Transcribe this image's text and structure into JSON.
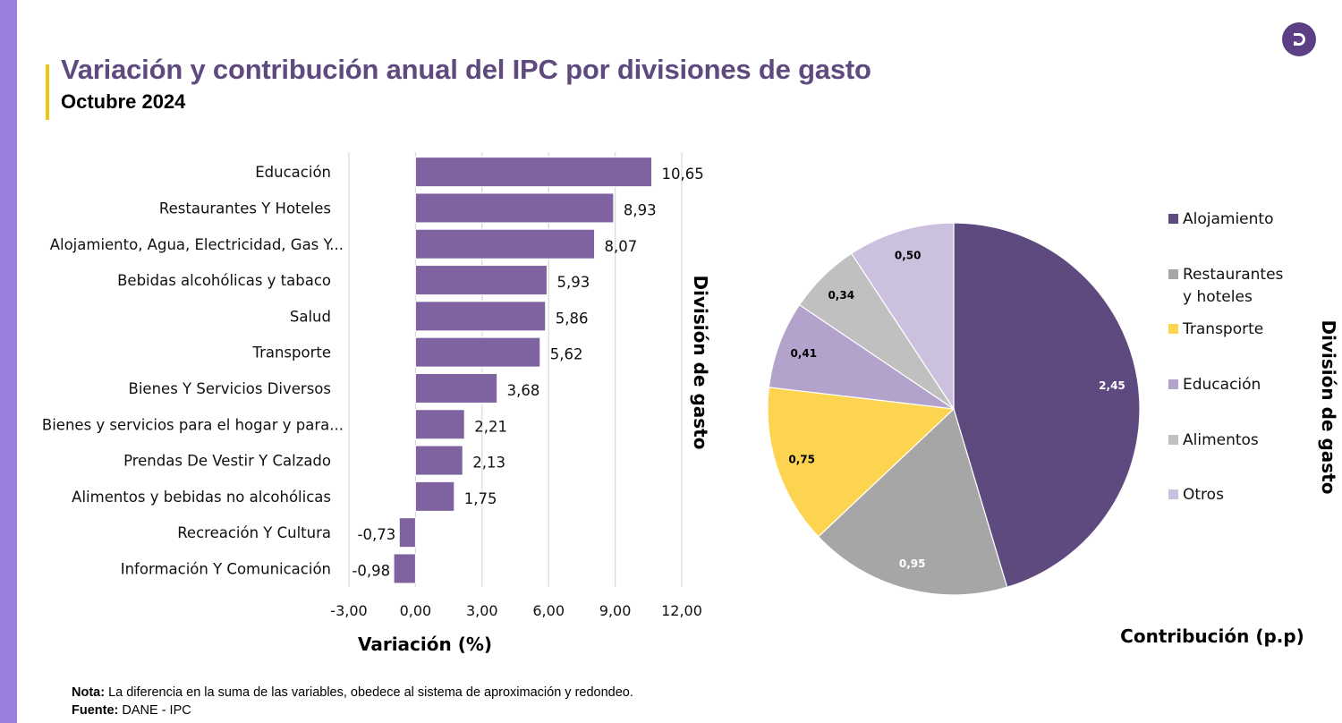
{
  "header": {
    "title": "Variación y contribución anual del IPC por divisiones de gasto",
    "subtitle": "Octubre 2024",
    "logo_letter": "D"
  },
  "colors": {
    "side_band": "#9b7ddc",
    "accent": "#f2c318",
    "title": "#5e4a7e",
    "bar": "#7f63a0"
  },
  "footer": {
    "note_label": "Nota:",
    "note_text": " La diferencia en la suma de las variables, obedece al sistema de aproximación y redondeo.",
    "source_label": "Fuente:",
    "source_text": " DANE - IPC"
  },
  "chart_data": [
    {
      "type": "bar",
      "orientation": "horizontal",
      "categories": [
        "Educación",
        "Restaurantes Y Hoteles",
        "Alojamiento, Agua, Electricidad, Gas Y...",
        "Bebidas alcohólicas y tabaco",
        "Salud",
        "Transporte",
        "Bienes Y Servicios Diversos",
        "Bienes y servicios para el hogar y para...",
        "Prendas De Vestir Y Calzado",
        "Alimentos y bebidas no alcohólicas",
        "Recreación Y Cultura",
        "Información Y Comunicación"
      ],
      "values": [
        10.65,
        8.93,
        8.07,
        5.93,
        5.86,
        5.62,
        3.68,
        2.21,
        2.13,
        1.75,
        -0.73,
        -0.98
      ],
      "value_labels": [
        "10,65",
        "8,93",
        "8,07",
        "5,93",
        "5,86",
        "5,62",
        "3,68",
        "2,21",
        "2,13",
        "1,75",
        "-0,73",
        "-0,98"
      ],
      "xlabel": "Variación (%)",
      "ylabel": "División de gasto",
      "xlim": [
        -3,
        12
      ],
      "xticks": [
        -3,
        0,
        3,
        6,
        9,
        12
      ],
      "xtick_labels": [
        "-3,00",
        "0,00",
        "3,00",
        "6,00",
        "9,00",
        "12,00"
      ],
      "grid": true,
      "color": "#7f63a0"
    },
    {
      "type": "pie",
      "title": "",
      "xlabel": "Contribución (p.p)",
      "legend_title": "División de gasto",
      "legend_position": "right",
      "slices": [
        {
          "label": "Alojamiento",
          "legend": "Alojamiento",
          "value": 2.45,
          "value_label": "2,45",
          "color": "#5e4a7e",
          "label_color": "#ffffff"
        },
        {
          "label": "Restaurantes y hoteles",
          "legend": "Restaurantes y hoteles",
          "value": 0.95,
          "value_label": "0,95",
          "color": "#a6a6a6",
          "label_color": "#ffffff"
        },
        {
          "label": "Transporte",
          "legend": "Transporte",
          "value": 0.75,
          "value_label": "0,75",
          "color": "#fdd44f",
          "label_color": "#000000"
        },
        {
          "label": "Educación",
          "legend": "Educación",
          "value": 0.41,
          "value_label": "0,41",
          "color": "#b3a2cb",
          "label_color": "#000000"
        },
        {
          "label": "Alimentos",
          "legend": "Alimentos",
          "value": 0.34,
          "value_label": "0,34",
          "color": "#c0c0c0",
          "label_color": "#000000"
        },
        {
          "label": "Otros",
          "legend": "Otros",
          "value": 0.5,
          "value_label": "0,50",
          "color": "#cbc0dd",
          "label_color": "#000000"
        }
      ],
      "legend_lines": [
        [
          "Alojamiento"
        ],
        [
          "Restaurantes",
          "y hoteles"
        ],
        [
          "Transporte"
        ],
        [
          "Educación"
        ],
        [
          "Alimentos"
        ],
        [
          "Otros"
        ]
      ]
    }
  ]
}
